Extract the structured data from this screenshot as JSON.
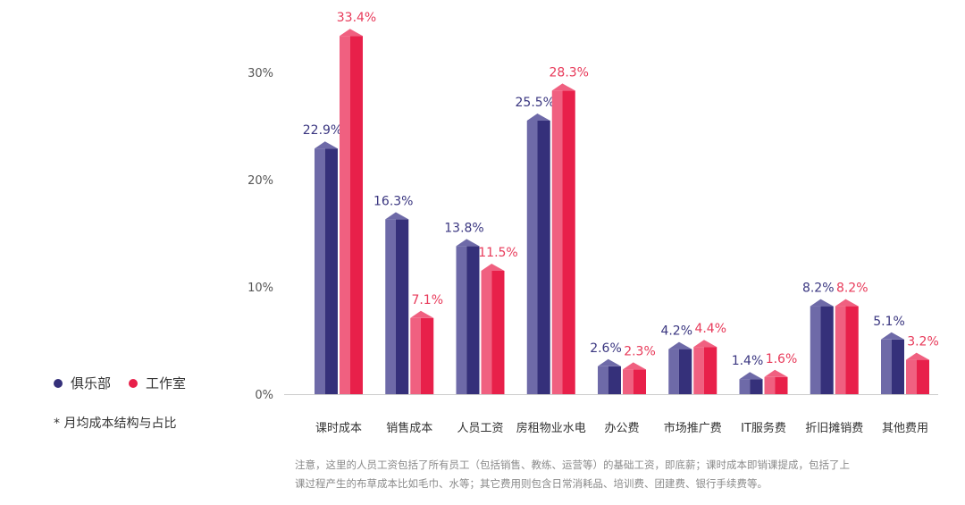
{
  "legend": {
    "series_a": "俱乐部",
    "series_b": "工作室"
  },
  "footnote": "* 月均成本结构与占比",
  "note": {
    "line1": "注意，这里的人员工资包括了所有员工（包括销售、教练、运营等）的基础工资，即底薪；课时成本即销课提成，包括了上",
    "line2": "课过程产生的布草成本比如毛巾、水等；其它费用则包含日常消耗品、培训费、团建费、银行手续费等。"
  },
  "colors": {
    "series_a": "#35307a",
    "series_a_light": "#6e6aa8",
    "series_a_label": "#3a3680",
    "series_b": "#e8204a",
    "series_b_light": "#f06080",
    "series_b_label": "#e83a5a",
    "axis": "#cccccc",
    "tick": "#555555"
  },
  "chart_data": {
    "type": "bar",
    "categories": [
      "课时成本",
      "销售成本",
      "人员工资",
      "房租物业水电",
      "办公费",
      "市场推广费",
      "IT服务费",
      "折旧摊销费",
      "其他费用"
    ],
    "series": [
      {
        "name": "俱乐部",
        "values": [
          22.9,
          16.3,
          13.8,
          25.5,
          2.6,
          4.2,
          1.4,
          8.2,
          5.1
        ],
        "labels": [
          "22.9%",
          "16.3%",
          "13.8%",
          "25.5%",
          "2.6%",
          "4.2%",
          "1.4%",
          "8.2%",
          "5.1%"
        ]
      },
      {
        "name": "工作室",
        "values": [
          33.4,
          7.1,
          11.5,
          28.3,
          2.3,
          4.4,
          1.6,
          8.2,
          3.2
        ],
        "labels": [
          "33.4%",
          "7.1%",
          "11.5%",
          "28.3%",
          "2.3%",
          "4.4%",
          "1.6%",
          "8.2%",
          "3.2%"
        ]
      }
    ],
    "yticks": [
      0,
      10,
      20,
      30
    ],
    "ytick_labels": [
      "0%",
      "10%",
      "20%",
      "30%"
    ],
    "ylim": [
      0,
      36
    ],
    "grid": false,
    "legend_position": "bottom-left"
  }
}
